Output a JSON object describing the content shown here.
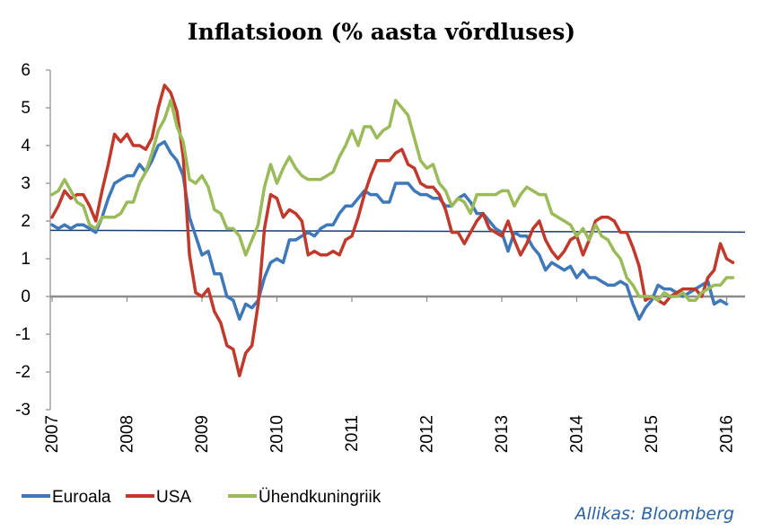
{
  "chart_data": {
    "type": "line",
    "title": "Inflatsioon (% aasta võrdluses)",
    "xlabel": "",
    "ylabel": "",
    "ylim": [
      -3,
      6
    ],
    "yticks": [
      "6",
      "5",
      "4",
      "3",
      "2",
      "1",
      "0",
      "-1",
      "-2",
      "-3"
    ],
    "xticks": [
      "2007",
      "2008",
      "2009",
      "2010",
      "2011",
      "2012",
      "2013",
      "2014",
      "2015",
      "2016"
    ],
    "x_start_year": 2007,
    "reference_line": {
      "value": 1.73
    },
    "grid": false,
    "legend_position": "bottom-left",
    "source": "Allikas:  Bloomberg",
    "series": [
      {
        "name": "Euroala",
        "color": "#3f78b9",
        "values": [
          1.9,
          1.8,
          1.9,
          1.8,
          1.9,
          1.9,
          1.8,
          1.7,
          2.1,
          2.6,
          3.0,
          3.1,
          3.2,
          3.2,
          3.5,
          3.3,
          3.6,
          4.0,
          4.1,
          3.8,
          3.6,
          3.2,
          2.1,
          1.6,
          1.1,
          1.2,
          0.6,
          0.6,
          0.0,
          -0.1,
          -0.6,
          -0.2,
          -0.3,
          -0.1,
          0.5,
          0.9,
          1.0,
          0.9,
          1.5,
          1.5,
          1.6,
          1.7,
          1.6,
          1.8,
          1.9,
          1.9,
          2.2,
          2.4,
          2.4,
          2.6,
          2.8,
          2.7,
          2.7,
          2.5,
          2.5,
          3.0,
          3.0,
          3.0,
          2.8,
          2.7,
          2.7,
          2.6,
          2.6,
          2.4,
          2.4,
          2.6,
          2.7,
          2.5,
          2.2,
          2.2,
          2.0,
          1.8,
          1.7,
          1.2,
          1.7,
          1.6,
          1.6,
          1.3,
          1.1,
          0.7,
          0.9,
          0.8,
          0.7,
          0.8,
          0.5,
          0.7,
          0.5,
          0.5,
          0.4,
          0.3,
          0.3,
          0.4,
          0.3,
          -0.2,
          -0.6,
          -0.3,
          -0.1,
          0.3,
          0.2,
          0.2,
          0.1,
          0.0,
          0.1,
          0.2,
          0.3,
          0.4,
          -0.2,
          -0.1,
          -0.2
        ]
      },
      {
        "name": "USA",
        "color": "#c0392b",
        "values": [
          2.1,
          2.4,
          2.8,
          2.6,
          2.7,
          2.7,
          2.4,
          2.0,
          2.8,
          3.5,
          4.3,
          4.1,
          4.3,
          4.0,
          4.0,
          3.9,
          4.2,
          5.0,
          5.6,
          5.4,
          4.9,
          3.7,
          1.1,
          0.1,
          0.0,
          0.2,
          -0.4,
          -0.7,
          -1.3,
          -1.4,
          -2.1,
          -1.5,
          -1.3,
          -0.2,
          1.8,
          2.7,
          2.6,
          2.1,
          2.3,
          2.2,
          2.0,
          1.1,
          1.2,
          1.1,
          1.1,
          1.2,
          1.1,
          1.5,
          1.6,
          2.1,
          2.7,
          3.2,
          3.6,
          3.6,
          3.6,
          3.8,
          3.9,
          3.5,
          3.4,
          3.0,
          2.9,
          2.9,
          2.7,
          2.3,
          1.7,
          1.7,
          1.4,
          1.7,
          2.0,
          2.2,
          1.8,
          1.7,
          1.6,
          2.0,
          1.5,
          1.1,
          1.4,
          1.8,
          2.0,
          1.5,
          1.2,
          1.0,
          1.2,
          1.5,
          1.6,
          1.1,
          1.5,
          2.0,
          2.1,
          2.1,
          2.0,
          1.7,
          1.7,
          1.3,
          0.8,
          -0.1,
          0.0,
          -0.1,
          -0.2,
          0.0,
          0.1,
          0.2,
          0.2,
          0.2,
          0.0,
          0.5,
          0.7,
          1.4,
          1.0,
          0.9
        ]
      },
      {
        "name": "Ühendkuningriik",
        "color": "#9bbb59",
        "values": [
          2.7,
          2.8,
          3.1,
          2.8,
          2.5,
          2.4,
          1.9,
          1.8,
          2.1,
          2.1,
          2.1,
          2.2,
          2.5,
          2.5,
          3.0,
          3.3,
          3.8,
          4.4,
          4.7,
          5.2,
          4.5,
          4.1,
          3.1,
          3.0,
          3.2,
          2.9,
          2.3,
          2.2,
          1.8,
          1.8,
          1.6,
          1.1,
          1.5,
          1.9,
          2.9,
          3.5,
          3.0,
          3.4,
          3.7,
          3.4,
          3.2,
          3.1,
          3.1,
          3.1,
          3.2,
          3.3,
          3.7,
          4.0,
          4.4,
          4.0,
          4.5,
          4.5,
          4.2,
          4.4,
          4.5,
          5.2,
          5.0,
          4.8,
          4.2,
          3.6,
          3.4,
          3.5,
          3.0,
          2.8,
          2.4,
          2.6,
          2.5,
          2.2,
          2.7,
          2.7,
          2.7,
          2.7,
          2.8,
          2.8,
          2.4,
          2.7,
          2.9,
          2.8,
          2.7,
          2.7,
          2.2,
          2.1,
          2.0,
          1.9,
          1.6,
          1.8,
          1.5,
          1.9,
          1.6,
          1.5,
          1.2,
          1.0,
          0.5,
          0.3,
          0.0,
          0.0,
          0.0,
          -0.1,
          0.1,
          0.0,
          0.0,
          0.1,
          -0.1,
          -0.1,
          0.1,
          0.2,
          0.3,
          0.3,
          0.5,
          0.5
        ]
      }
    ]
  }
}
